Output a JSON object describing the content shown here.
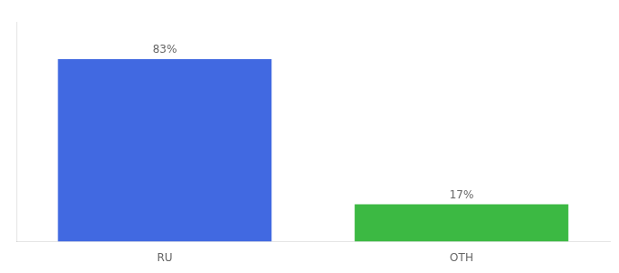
{
  "chart_data": {
    "type": "bar",
    "categories": [
      "RU",
      "OTH"
    ],
    "values": [
      83,
      17
    ],
    "value_labels": [
      "83%",
      "17%"
    ],
    "colors": [
      "#4169e1",
      "#3cb943"
    ],
    "ylim": [
      0,
      100
    ],
    "grid": false,
    "data_labels": true,
    "tick_labels": "x"
  }
}
